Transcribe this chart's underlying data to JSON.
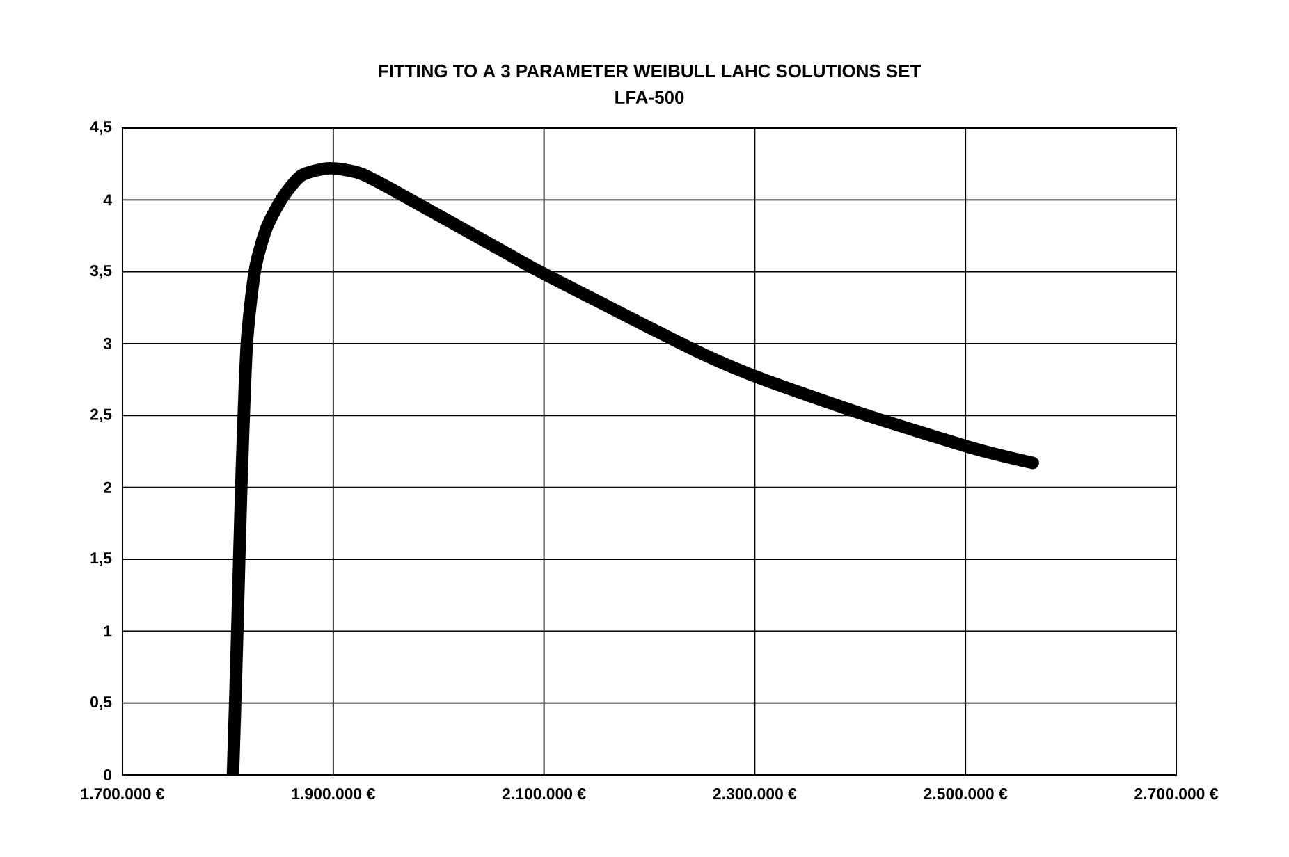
{
  "chart_data": {
    "type": "line",
    "title": "FITTING TO A 3 PARAMETER WEIBULL LAHC SOLUTIONS SET",
    "subtitle": "LFA-500",
    "series": [
      {
        "color": "#000000",
        "x": [
          1804800,
          1806600,
          1809200,
          1812700,
          1818000,
          1825900,
          1837000,
          1852300,
          1870000,
          1896400,
          1927200,
          1971200,
          2059300,
          2101600,
          2244300,
          2305000,
          2402700,
          2508400,
          2563900
        ],
        "values": [
          0,
          0.42,
          1.07,
          2.0,
          3.0,
          3.52,
          3.81,
          4.02,
          4.17,
          4.22,
          4.18,
          4.01,
          3.65,
          3.48,
          2.95,
          2.76,
          2.51,
          2.27,
          2.17
        ]
      }
    ],
    "xlim": [
      1700000,
      2700000
    ],
    "xticks": [
      {
        "value": 1700000,
        "label": "1.700.000 €"
      },
      {
        "value": 1900000,
        "label": "1.900.000 €"
      },
      {
        "value": 2100000,
        "label": "2.100.000 €"
      },
      {
        "value": 2300000,
        "label": "2.300.000 €"
      },
      {
        "value": 2500000,
        "label": "2.500.000 €"
      },
      {
        "value": 2700000,
        "label": "2.700.000 €"
      }
    ],
    "ylim": [
      0,
      4.5
    ],
    "yticks": [
      0,
      {
        "value": 0.5,
        "label": "0,5"
      },
      1,
      {
        "value": 1.5,
        "label": "1,5"
      },
      2,
      {
        "value": 2.5,
        "label": "2,5"
      },
      3,
      {
        "value": 3.5,
        "label": "3,5"
      },
      4,
      {
        "value": 4.5,
        "label": "4,5"
      }
    ],
    "grid": true
  }
}
